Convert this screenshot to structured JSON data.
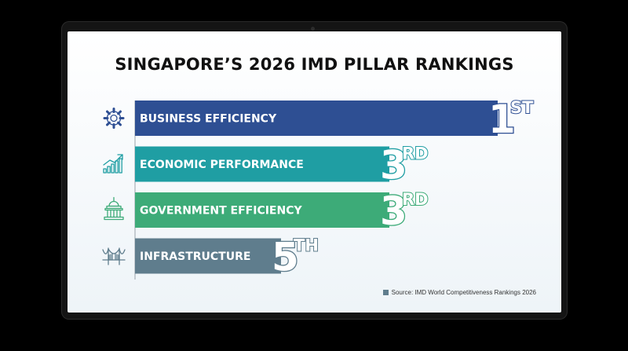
{
  "chart_data": {
    "type": "bar",
    "orientation": "horizontal",
    "title": "SINGAPORE’S 2026 IMD PILLAR RANKINGS",
    "categories": [
      "BUSINESS EFFICIENCY",
      "ECONOMIC PERFORMANCE",
      "GOVERNMENT EFFICIENCY",
      "INFRASTRUCTURE"
    ],
    "values": [
      1,
      3,
      3,
      5
    ],
    "rank_numbers": [
      "1",
      "3",
      "3",
      "5"
    ],
    "rank_suffixes": [
      "ST",
      "RD",
      "RD",
      "TH"
    ],
    "icons": [
      "gear-icon",
      "growth-chart-icon",
      "government-building-icon",
      "bridge-icon"
    ],
    "colors": [
      "#2e4f93",
      "#1f9ea3",
      "#3dab78",
      "#5f7d8d"
    ],
    "grid": false,
    "legend": "none"
  },
  "source": "Source: IMD World Competitiveness Rankings 2026"
}
